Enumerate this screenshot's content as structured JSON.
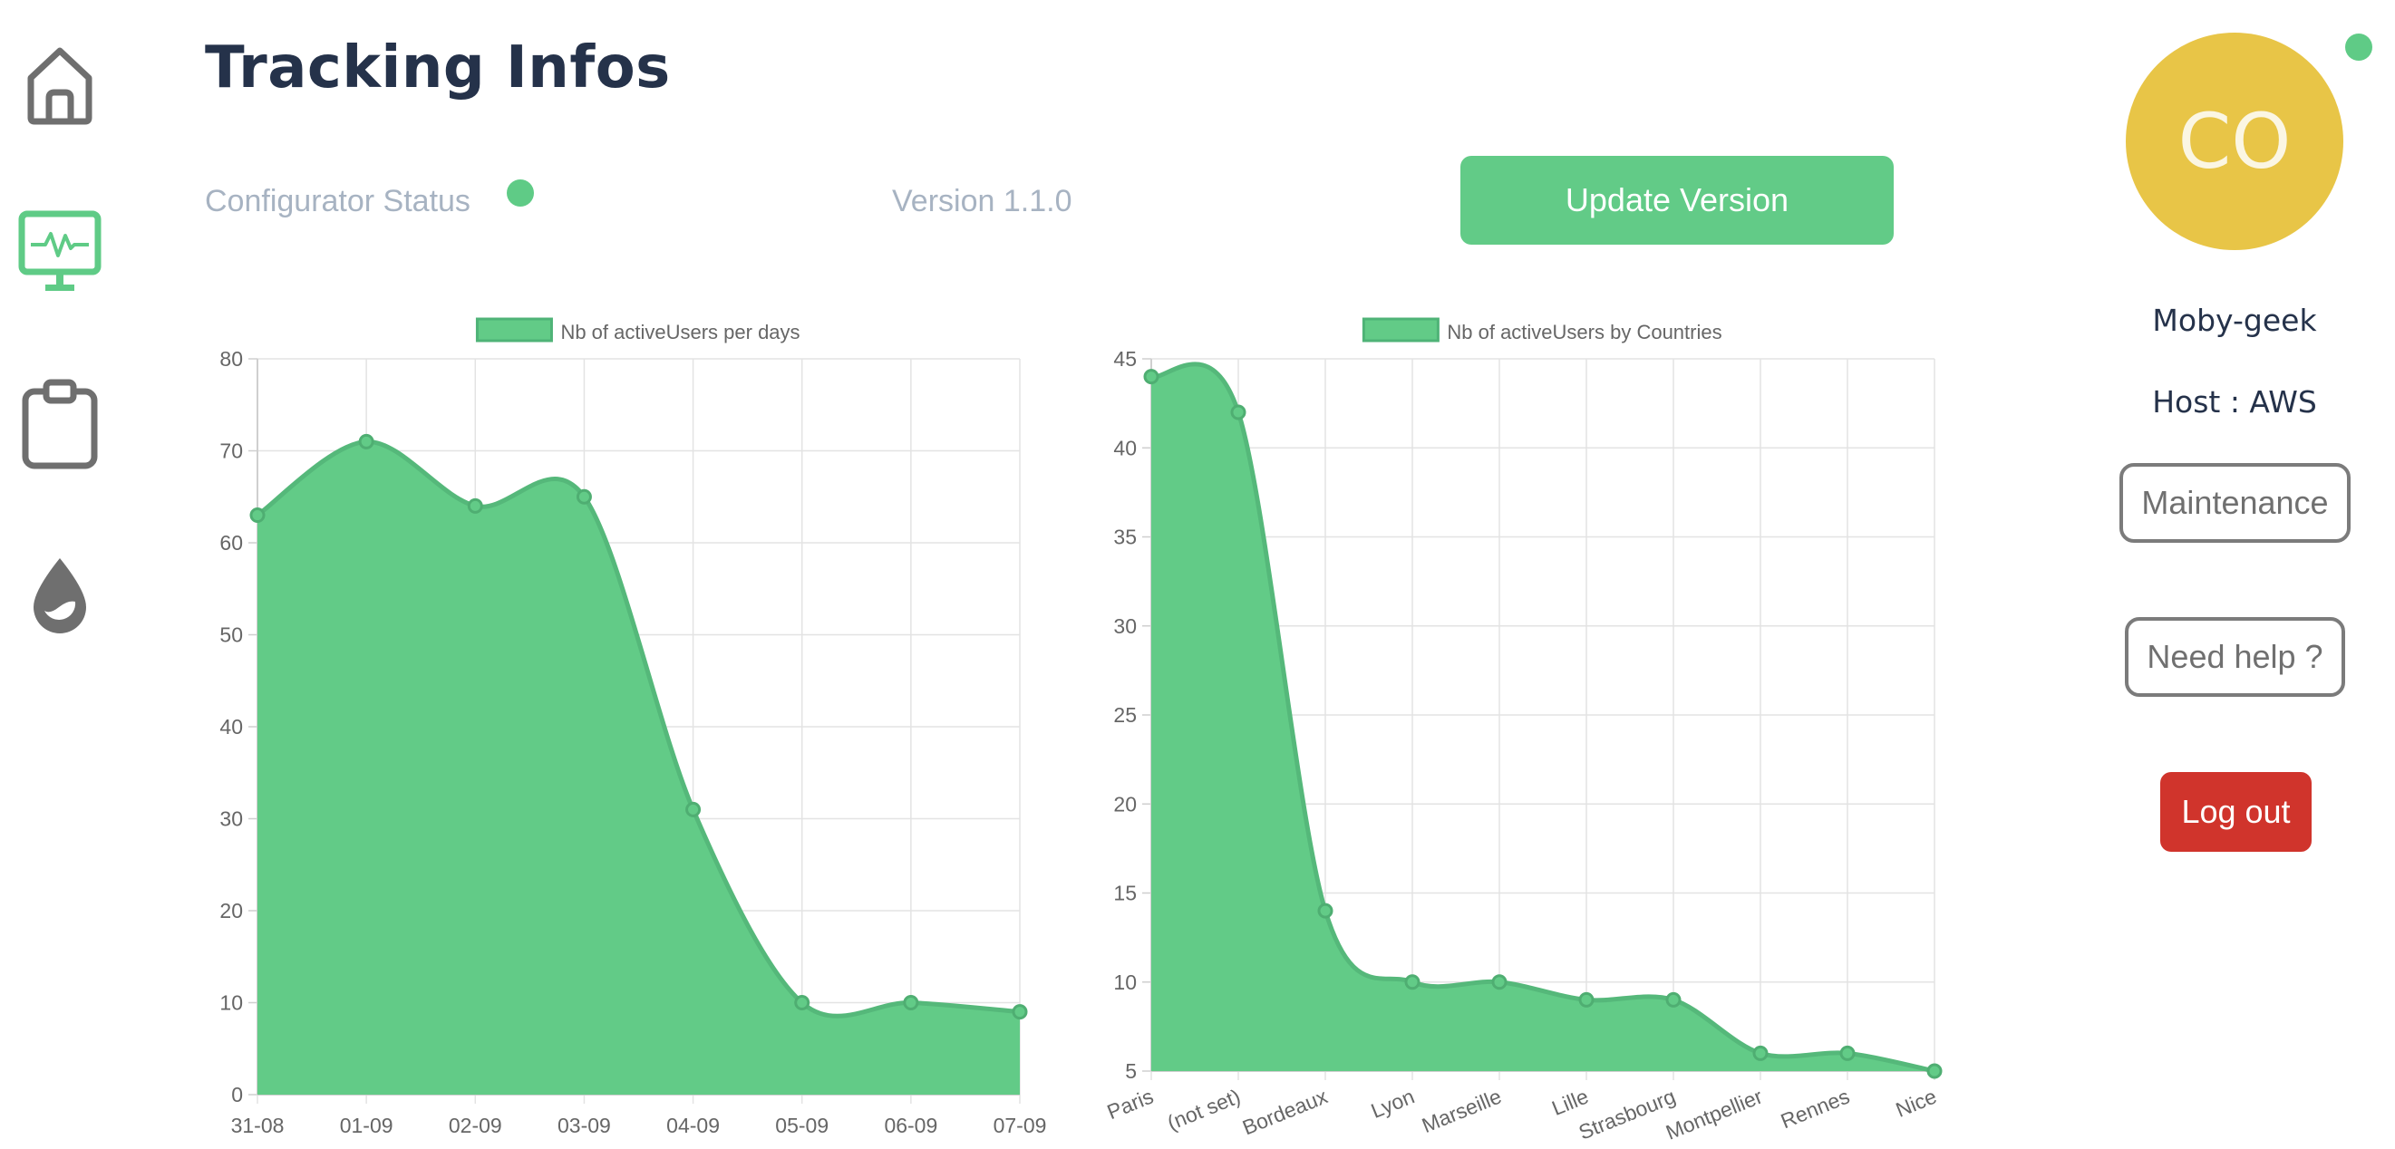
{
  "header": {
    "title": "Tracking Infos",
    "status_label": "Configurator Status",
    "version_label": "Version 1.1.0",
    "update_button": "Update Version"
  },
  "sidebar": {
    "items": [
      {
        "name": "home",
        "icon": "home-icon"
      },
      {
        "name": "monitoring",
        "icon": "monitor-heartbeat-icon",
        "active": true
      },
      {
        "name": "clipboard",
        "icon": "clipboard-icon"
      },
      {
        "name": "theme",
        "icon": "drop-icon"
      }
    ]
  },
  "user": {
    "initials": "CO",
    "name": "Moby-geek",
    "host": "Host : AWS",
    "maintenance_button": "Maintenance",
    "help_button": "Need help ?",
    "logout_button": "Log out"
  },
  "colors": {
    "accent_green": "#62cb87",
    "avatar_yellow": "#e8c547",
    "logout_red": "#d0342c",
    "title_navy": "#25324a"
  },
  "chart_data": [
    {
      "type": "area",
      "legend": "Nb of activeUsers per days",
      "categories": [
        "31-08",
        "01-09",
        "02-09",
        "03-09",
        "04-09",
        "05-09",
        "06-09",
        "07-09"
      ],
      "values": [
        63,
        71,
        64,
        65,
        31,
        10,
        10,
        9
      ],
      "ylim": [
        0,
        80
      ],
      "yticks": [
        0,
        10,
        20,
        30,
        40,
        50,
        60,
        70,
        80
      ],
      "grid": true,
      "legend_position": "top"
    },
    {
      "type": "area",
      "legend": "Nb of activeUsers by Countries",
      "categories": [
        "Paris",
        "(not set)",
        "Bordeaux",
        "Lyon",
        "Marseille",
        "Lille",
        "Strasbourg",
        "Montpellier",
        "Rennes",
        "Nice"
      ],
      "values": [
        44,
        42,
        14,
        10,
        10,
        9,
        9,
        6,
        6,
        5
      ],
      "ylim": [
        5,
        45
      ],
      "yticks": [
        5,
        10,
        15,
        20,
        25,
        30,
        35,
        40,
        45
      ],
      "grid": true,
      "legend_position": "top"
    }
  ]
}
